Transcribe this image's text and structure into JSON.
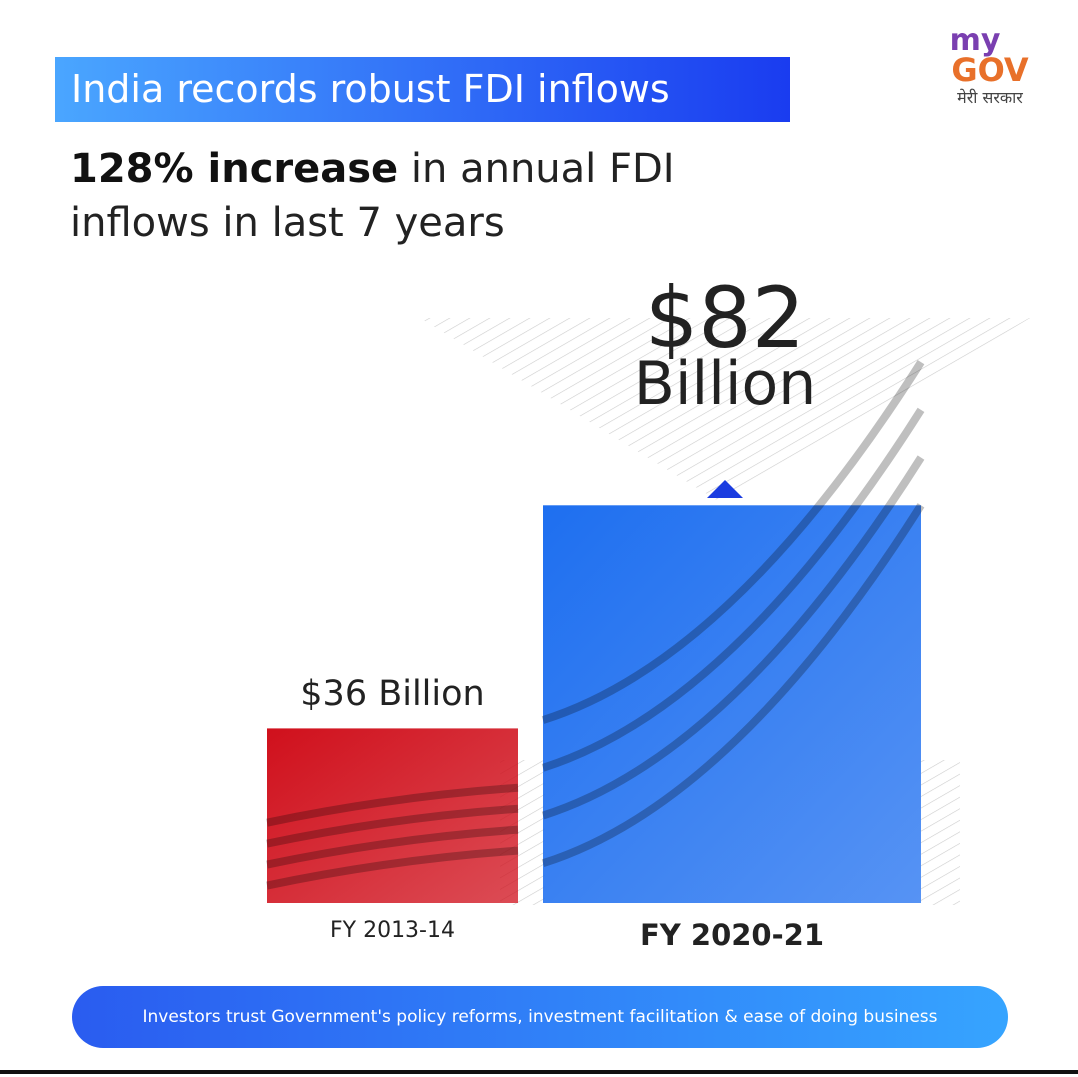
{
  "logo": {
    "top": "my",
    "main": "GOV",
    "tagline": "मेरी सरकार"
  },
  "chart_data": {
    "type": "bar",
    "title": "India records robust FDI inflows",
    "subtitle": [
      "128% increase",
      "in annual FDI inflows in last 7 years"
    ],
    "categories": [
      "FY 2013-14",
      "FY 2020-21"
    ],
    "values": [
      36,
      82
    ],
    "value_labels": [
      "$36 Billion",
      "$82 Billion"
    ],
    "colors": [
      "#d0101c",
      "#1e6ff0"
    ],
    "footer": "Investors trust Government's policy reforms, investment facilitation & ease of doing business"
  }
}
